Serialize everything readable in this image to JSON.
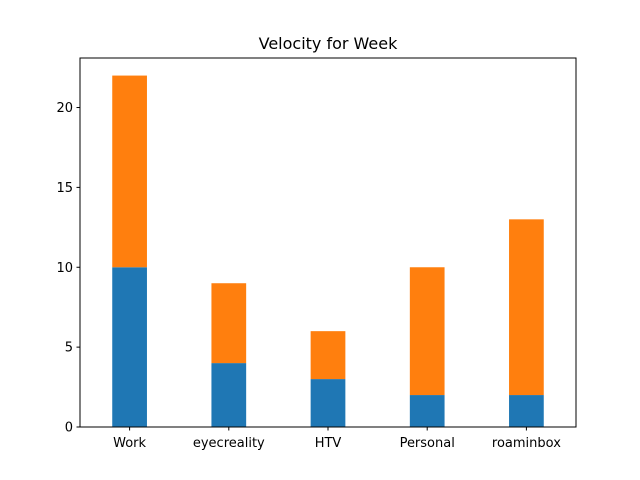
{
  "chart_data": {
    "type": "bar",
    "stacked": true,
    "title": "Velocity for Week",
    "xlabel": "",
    "ylabel": "",
    "categories": [
      "Work",
      "eyecreality",
      "HTV",
      "Personal",
      "roaminbox"
    ],
    "series": [
      {
        "color": "#1f77b4",
        "values": [
          10,
          4,
          3,
          2,
          2
        ]
      },
      {
        "color": "#ff7f0e",
        "values": [
          12,
          5,
          3,
          8,
          11
        ]
      }
    ],
    "ylim": [
      0,
      23.1
    ],
    "yticks": [
      0,
      5,
      10,
      15,
      20
    ],
    "grid": false
  }
}
